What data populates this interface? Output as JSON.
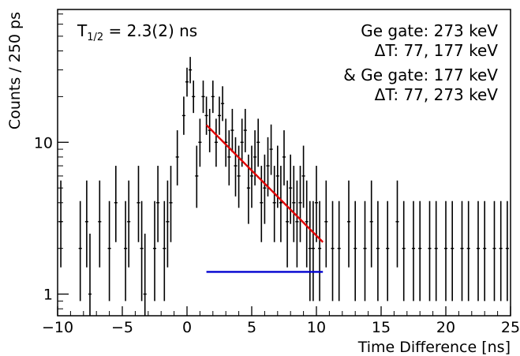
{
  "chart_data": {
    "type": "scatter",
    "xlabel": "Time Difference [ns]",
    "ylabel": "Counts / 250 ps",
    "xlim": [
      -10,
      25
    ],
    "ylim": [
      0.72,
      75
    ],
    "yscale": "log",
    "grid": false,
    "xticks": [
      {
        "value": -10,
        "label": "−10"
      },
      {
        "value": -5,
        "label": "−5"
      },
      {
        "value": 0,
        "label": "0"
      },
      {
        "value": 5,
        "label": "5"
      },
      {
        "value": 10,
        "label": "10"
      },
      {
        "value": 15,
        "label": "15"
      },
      {
        "value": 20,
        "label": "20"
      },
      {
        "value": 25,
        "label": "25"
      }
    ],
    "yticks": [
      {
        "value": 1,
        "label": "1"
      },
      {
        "value": 10,
        "label": "10"
      }
    ],
    "annotations": {
      "half_life": {
        "main": "T",
        "sub": "1/2",
        "rest": " = 2.3(2) ns"
      },
      "gate_lines": [
        "Ge gate: 273 keV",
        "ΔT: 77, 177 keV",
        "& Ge gate: 177 keV",
        "ΔT: 77, 273 keV"
      ]
    },
    "series": [
      {
        "kind": "data-with-errors",
        "color": "#000000",
        "x": [
          -9.75,
          -8.25,
          -7.75,
          -7.5,
          -6.75,
          -6.0,
          -5.5,
          -4.75,
          -4.5,
          -3.75,
          -3.5,
          -3.25,
          -2.5,
          -2.25,
          -1.75,
          -1.5,
          -1.25,
          -0.75,
          -0.25,
          0.0,
          0.25,
          0.5,
          0.75,
          1.0,
          1.25,
          1.5,
          1.75,
          2.0,
          2.25,
          2.5,
          2.75,
          3.0,
          3.25,
          3.5,
          3.75,
          4.0,
          4.25,
          4.5,
          4.75,
          5.0,
          5.25,
          5.5,
          5.75,
          6.0,
          6.25,
          6.5,
          6.75,
          7.0,
          7.25,
          7.5,
          7.75,
          8.0,
          8.25,
          8.5,
          8.75,
          9.0,
          9.25,
          9.5,
          9.75,
          10.0,
          10.25,
          10.75,
          11.25,
          11.75,
          12.5,
          13.0,
          13.75,
          14.25,
          14.75,
          15.5,
          16.25,
          16.75,
          17.5,
          18.0,
          18.75,
          19.25,
          20.0,
          20.5,
          21.25,
          21.75,
          22.5,
          23.0,
          23.75,
          24.25,
          24.75
        ],
        "y": [
          3,
          2,
          3,
          1,
          3,
          2,
          4,
          2,
          3,
          4,
          2,
          1,
          2,
          4,
          2,
          3,
          4,
          8,
          15,
          25,
          30,
          20,
          6,
          10,
          20,
          15,
          12,
          20,
          10,
          15,
          18,
          10,
          8,
          12,
          7,
          6,
          10,
          12,
          5,
          6,
          8,
          10,
          4,
          5,
          7,
          9,
          4,
          6,
          4,
          8,
          3,
          5,
          4,
          3,
          4,
          6,
          3,
          2,
          2,
          4,
          2,
          3,
          2,
          2,
          3,
          2,
          2,
          3,
          2,
          2,
          3,
          2,
          2,
          2,
          2,
          2,
          2,
          2,
          2,
          2,
          2,
          2,
          2,
          2,
          2
        ],
        "yerr_low": [
          1.5,
          1.1,
          1.5,
          0.7,
          1.5,
          1.1,
          1.8,
          1.1,
          1.5,
          1.8,
          1.1,
          0.7,
          1.1,
          1.8,
          1.1,
          1.5,
          1.8,
          2.8,
          3.8,
          5.0,
          5.5,
          4.4,
          2.3,
          3.1,
          4.4,
          3.8,
          3.4,
          4.4,
          3.1,
          3.8,
          4.2,
          3.1,
          2.8,
          3.4,
          2.6,
          2.3,
          3.1,
          3.4,
          2.1,
          2.3,
          2.8,
          3.1,
          1.8,
          2.1,
          2.6,
          2.9,
          1.8,
          2.3,
          1.8,
          2.8,
          1.5,
          2.1,
          1.8,
          1.5,
          1.8,
          2.3,
          1.5,
          1.1,
          1.1,
          1.8,
          1.1,
          1.5,
          1.1,
          1.1,
          1.5,
          1.1,
          1.1,
          1.5,
          1.1,
          1.1,
          1.5,
          1.1,
          1.1,
          1.1,
          1.1,
          1.1,
          1.1,
          1.1,
          1.1,
          1.1,
          1.1,
          1.1,
          1.1,
          1.1,
          1.1
        ],
        "yerr_high": [
          2.6,
          2.1,
          2.6,
          1.5,
          2.6,
          2.1,
          3.0,
          2.1,
          2.6,
          3.0,
          2.1,
          1.5,
          2.1,
          3.0,
          2.1,
          2.6,
          3.0,
          4.0,
          5.0,
          6.0,
          6.5,
          5.5,
          3.5,
          4.3,
          5.5,
          5.0,
          4.6,
          5.5,
          4.3,
          5.0,
          5.4,
          4.3,
          4.0,
          4.6,
          3.8,
          3.5,
          4.3,
          4.6,
          3.3,
          3.5,
          4.0,
          4.3,
          3.0,
          3.3,
          3.8,
          4.1,
          3.0,
          3.5,
          3.0,
          4.0,
          2.6,
          3.3,
          3.0,
          2.6,
          3.0,
          3.5,
          2.6,
          2.1,
          2.1,
          3.0,
          2.1,
          2.6,
          2.1,
          2.1,
          2.6,
          2.1,
          2.1,
          2.6,
          2.1,
          2.1,
          2.6,
          2.1,
          2.1,
          2.1,
          2.1,
          2.1,
          2.1,
          2.1,
          2.1,
          2.1,
          2.1,
          2.1,
          2.1,
          2.1,
          2.1
        ],
        "xerr": 0.125
      },
      {
        "kind": "fit-curve",
        "color": "#e00000",
        "x": [
          1.5,
          2.5,
          3.5,
          4.5,
          5.5,
          6.5,
          7.5,
          8.5,
          9.5,
          10.5
        ],
        "y": [
          13.0,
          10.8,
          8.95,
          7.43,
          6.16,
          5.11,
          4.24,
          3.52,
          2.92,
          2.2
        ]
      },
      {
        "kind": "background-level",
        "color": "#0000d0",
        "x": [
          1.5,
          10.5
        ],
        "y": [
          1.4,
          1.4
        ]
      }
    ]
  }
}
